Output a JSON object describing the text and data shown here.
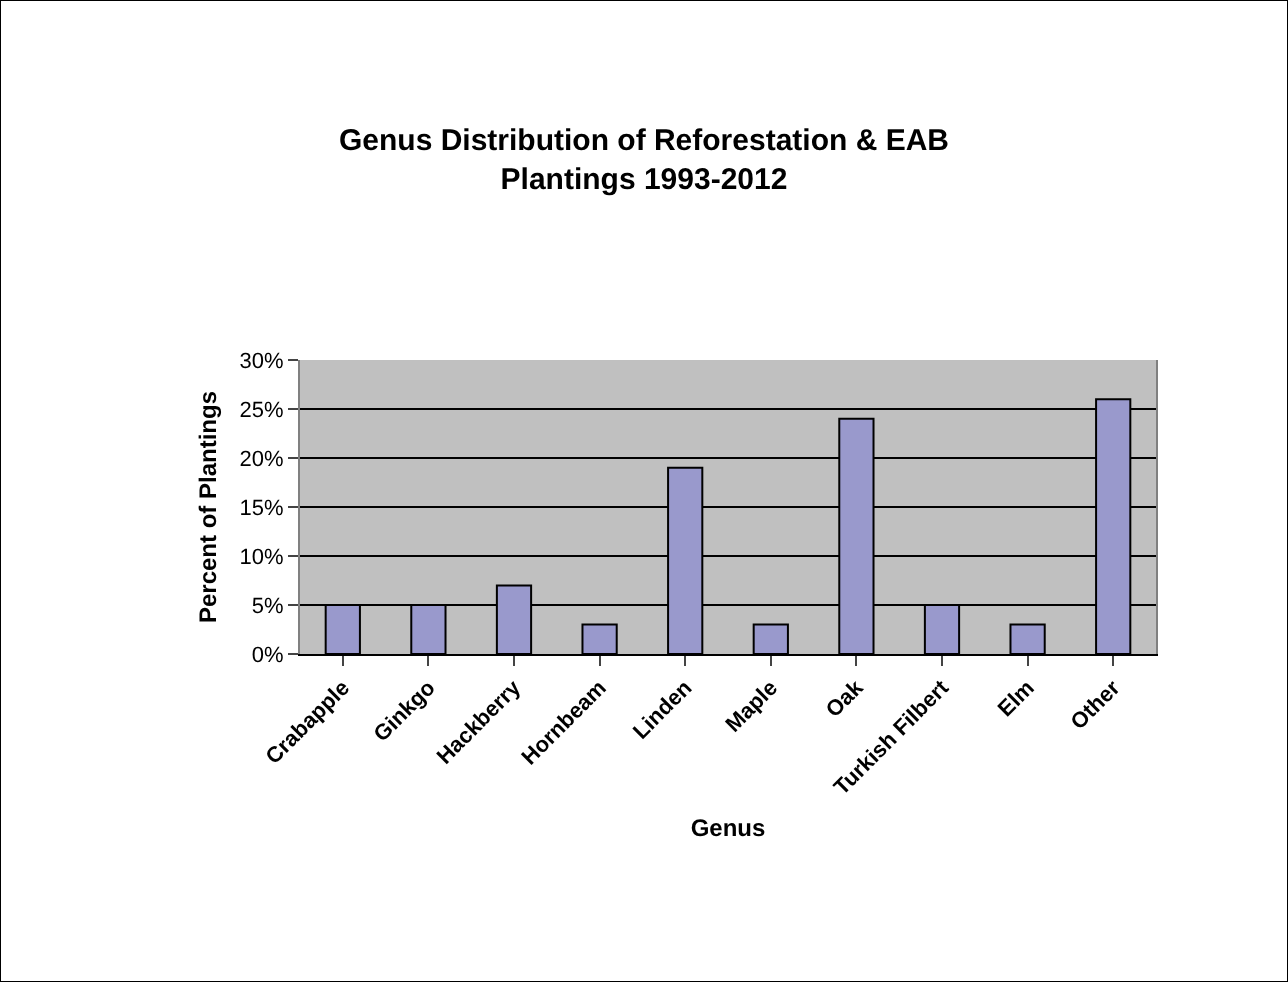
{
  "chart_data": {
    "type": "bar",
    "title": "Genus Distribution of Reforestation & EAB\nPlantings 1993-2012",
    "xlabel": "Genus",
    "ylabel": "Percent of Plantings",
    "categories": [
      "Crabapple",
      "Ginkgo",
      "Hackberry",
      "Hornbeam",
      "Linden",
      "Maple",
      "Oak",
      "Turkish Filbert",
      "Elm",
      "Other"
    ],
    "values": [
      5,
      5,
      7,
      3,
      19,
      3,
      24,
      5,
      3,
      26
    ],
    "color": "#9999cc",
    "ylim": [
      0,
      30
    ],
    "yticks": [
      {
        "value": 0,
        "label": "0%"
      },
      {
        "value": 5,
        "label": "5%"
      },
      {
        "value": 10,
        "label": "10%"
      },
      {
        "value": 15,
        "label": "15%"
      },
      {
        "value": 20,
        "label": "20%"
      },
      {
        "value": 25,
        "label": "25%"
      },
      {
        "value": 30,
        "label": "30%"
      }
    ],
    "grid": "y"
  }
}
